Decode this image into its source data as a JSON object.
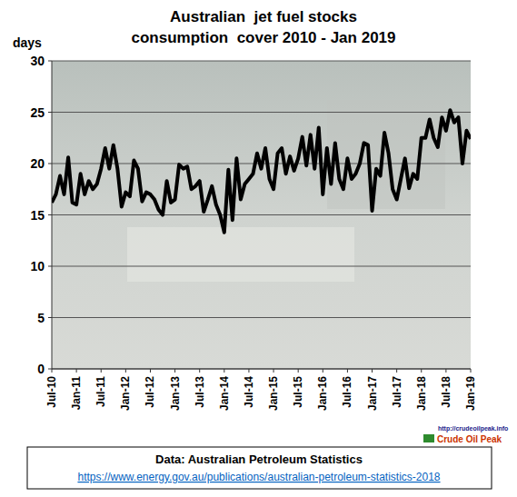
{
  "chart_data": {
    "type": "line",
    "title": "Australian  jet fuel stocks",
    "subtitle": "consumption  cover 2010 - Jan 2019",
    "y_label": "days",
    "source": "Data: Australian Petroleum Statistics",
    "source_url": "https://www.energy.gov.au/publications/australian-petroleum-statistics-2018",
    "annotations": [
      "http://crudeoilpeak.info",
      "Crude Oil Peak"
    ],
    "categories": [
      "Jul-10",
      null,
      null,
      null,
      null,
      null,
      "Jan-11",
      null,
      null,
      null,
      null,
      null,
      "Jul-11",
      null,
      null,
      null,
      null,
      null,
      "Jan-12",
      null,
      null,
      null,
      null,
      null,
      "Jul-12",
      null,
      null,
      null,
      null,
      null,
      "Jan-13",
      null,
      null,
      null,
      null,
      null,
      "Jul-13",
      null,
      null,
      null,
      null,
      null,
      "Jan-14",
      null,
      null,
      null,
      null,
      null,
      "Jul-14",
      null,
      null,
      null,
      null,
      null,
      "Jan-15",
      null,
      null,
      null,
      null,
      null,
      "Jul-15",
      null,
      null,
      null,
      null,
      null,
      "Jan-16",
      null,
      null,
      null,
      null,
      null,
      "Jul-16",
      null,
      null,
      null,
      null,
      null,
      "Jan-17",
      null,
      null,
      null,
      null,
      null,
      "Jul-17",
      null,
      null,
      null,
      null,
      null,
      "Jan-18",
      null,
      null,
      null,
      null,
      null,
      "Jul-18",
      null,
      null,
      null,
      null,
      null,
      "Jan-19"
    ],
    "values": [
      16.2,
      17,
      18.8,
      17,
      20.6,
      16.2,
      16,
      19,
      17,
      18.3,
      17.5,
      18,
      19.5,
      21.5,
      19.5,
      21.8,
      19.5,
      15.8,
      17.2,
      16.8,
      20.3,
      19.5,
      16.3,
      17.2,
      17,
      16.5,
      15.5,
      15,
      18.3,
      16.2,
      16.5,
      19.9,
      19.5,
      19.7,
      17.5,
      17.8,
      18.3,
      15.3,
      16.5,
      17.8,
      16,
      15,
      13.3,
      19.4,
      14.5,
      20.5,
      16.5,
      18,
      18.5,
      19,
      21,
      19.5,
      21.5,
      18.5,
      17.5,
      21,
      21.5,
      19,
      20.7,
      19.3,
      20.5,
      22.6,
      19.8,
      22.8,
      19.5,
      23.5,
      17,
      21.5,
      18,
      22,
      18.5,
      17.5,
      20.5,
      18.5,
      19,
      20,
      22,
      21.8,
      15.4,
      19.5,
      18.8,
      23,
      21,
      17.5,
      16.5,
      18.5,
      20.5,
      17.6,
      19,
      18.5,
      22.5,
      22.5,
      24.3,
      22.5,
      21.6,
      24.5,
      23.2,
      25.2,
      24,
      24.5,
      20,
      23.2,
      22.4
    ],
    "color": "#000000",
    "ylim": [
      0,
      30
    ],
    "yticks": [
      0,
      5,
      10,
      15,
      20,
      25,
      30
    ],
    "grid": true
  }
}
